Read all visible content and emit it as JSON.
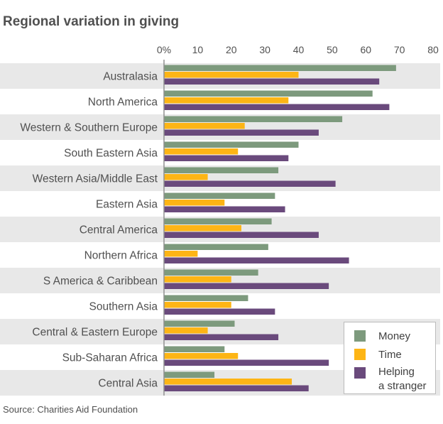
{
  "chart_data": {
    "type": "bar",
    "orientation": "horizontal",
    "title": "Regional variation in giving",
    "source": "Source: Charities Aid Foundation",
    "categories": [
      "Australasia",
      "North America",
      "Western & Southern Europe",
      "South Eastern Asia",
      "Western Asia/Middle East",
      "Eastern Asia",
      "Central America",
      "Northern Africa",
      "S America & Caribbean",
      "Southern Asia",
      "Central & Eastern Europe",
      "Sub-Saharan Africa",
      "Central Asia"
    ],
    "series": [
      {
        "name": "Money",
        "color": "#7d9a7d",
        "values": [
          69,
          62,
          53,
          40,
          34,
          33,
          32,
          31,
          28,
          25,
          21,
          18,
          15
        ]
      },
      {
        "name": "Time",
        "color": "#fdb515",
        "values": [
          40,
          37,
          24,
          22,
          13,
          18,
          23,
          10,
          20,
          20,
          13,
          22,
          38
        ]
      },
      {
        "name": "Helping a stranger",
        "color": "#6a4a7c",
        "values": [
          64,
          67,
          46,
          37,
          51,
          36,
          46,
          55,
          49,
          33,
          34,
          49,
          43
        ]
      }
    ],
    "xlim": [
      0,
      80
    ],
    "x_ticks": [
      {
        "value": 0,
        "label": "0%"
      },
      {
        "value": 10,
        "label": "10"
      },
      {
        "value": 20,
        "label": "20"
      },
      {
        "value": 30,
        "label": "30"
      },
      {
        "value": 40,
        "label": "40"
      },
      {
        "value": 50,
        "label": "50"
      },
      {
        "value": 60,
        "label": "60"
      },
      {
        "value": 70,
        "label": "70"
      },
      {
        "value": 80,
        "label": "80"
      }
    ],
    "legend": {
      "position": "bottom-right",
      "items": [
        {
          "lines": [
            "Money"
          ]
        },
        {
          "lines": [
            "Time"
          ]
        },
        {
          "lines": [
            "Helping",
            "a stranger"
          ]
        }
      ]
    },
    "colors": {
      "band": "#e8e8e8",
      "axis": "#909090",
      "text": "#505050"
    }
  }
}
